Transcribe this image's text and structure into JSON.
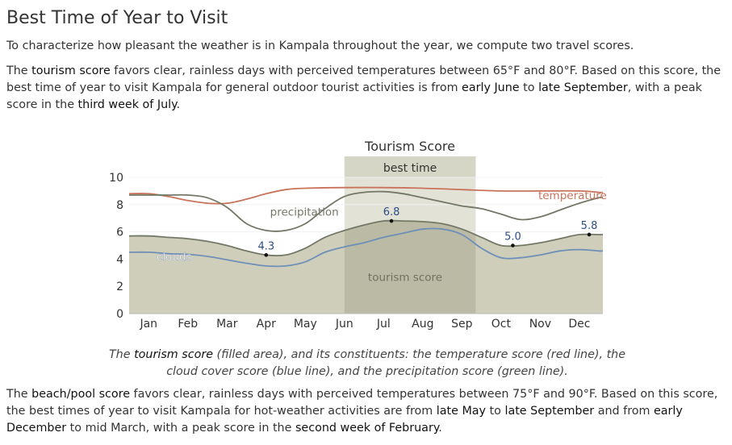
{
  "page": {
    "title": "Best Time of Year to Visit",
    "intro": "To characterize how pleasant the weather is in Kampala throughout the year, we compute two travel scores.",
    "tourism_para": {
      "p1": "The ",
      "k1": "tourism score",
      "p2": " favors clear, rainless days with perceived temperatures between 65°F and 80°F. Based on this score, the best time of year to visit Kampala for general outdoor tourist activities is from ",
      "k2": "early June",
      "p3": " to ",
      "k3": "late September",
      "p4": ", with a peak score in the ",
      "k4": "third week of July",
      "p5": "."
    },
    "caption": {
      "p1": "The ",
      "k1": "tourism score",
      "p2": " (filled area), and its constituents: the temperature score (red line), the cloud cover score (blue line), and the precipitation score (green line)."
    },
    "beach_para": {
      "p1": "The ",
      "k1": "beach/pool score",
      "p2": " favors clear, rainless days with perceived temperatures between 75°F and 90°F. Based on this score, the best times of year to visit Kampala for hot-weather activities are from ",
      "k2": "late May",
      "p3": " to ",
      "k3": "late September",
      "p4": " and from ",
      "k4": "early December",
      "p5": " to mid March, with a peak score in the ",
      "k5": "second week of February",
      "p6": "."
    }
  },
  "chart_data": {
    "type": "area",
    "title": "Tourism Score",
    "best_time_label": "best time",
    "best_time_range": [
      5.0,
      8.35
    ],
    "x_categories": [
      "Jan",
      "Feb",
      "Mar",
      "Apr",
      "May",
      "Jun",
      "Jul",
      "Aug",
      "Sep",
      "Oct",
      "Nov",
      "Dec"
    ],
    "ylim": [
      0,
      10
    ],
    "yticks": [
      "0",
      "2",
      "4",
      "6",
      "8",
      "10"
    ],
    "series": [
      {
        "name": "tourism score",
        "color": "#c9c9b4",
        "values": [
          [
            0,
            5.7
          ],
          [
            0.5,
            5.6
          ],
          [
            1,
            5.5
          ],
          [
            1.5,
            5.3
          ],
          [
            2,
            5.0
          ],
          [
            2.5,
            4.6
          ],
          [
            3,
            4.3
          ],
          [
            3.5,
            4.3
          ],
          [
            4,
            4.8
          ],
          [
            4.5,
            5.6
          ],
          [
            5,
            6.1
          ],
          [
            5.5,
            6.5
          ],
          [
            6,
            6.8
          ],
          [
            6.5,
            6.8
          ],
          [
            7,
            6.75
          ],
          [
            7.5,
            6.6
          ],
          [
            8,
            6.2
          ],
          [
            8.5,
            5.6
          ],
          [
            9,
            5.0
          ],
          [
            9.5,
            5.0
          ],
          [
            10,
            5.2
          ],
          [
            10.5,
            5.5
          ],
          [
            11,
            5.8
          ],
          [
            11.5,
            5.8
          ]
        ]
      },
      {
        "name": "temperature",
        "color": "#c8735a",
        "values": [
          [
            0,
            8.8
          ],
          [
            0.5,
            8.6
          ],
          [
            1,
            8.3
          ],
          [
            1.5,
            8.1
          ],
          [
            2,
            8.1
          ],
          [
            2.5,
            8.4
          ],
          [
            3,
            8.8
          ],
          [
            3.5,
            9.1
          ],
          [
            4,
            9.2
          ],
          [
            5,
            9.25
          ],
          [
            6,
            9.25
          ],
          [
            7,
            9.2
          ],
          [
            8,
            9.1
          ],
          [
            9,
            9.0
          ],
          [
            10,
            9.0
          ],
          [
            11,
            9.0
          ],
          [
            11.5,
            8.9
          ]
        ]
      },
      {
        "name": "precipitation",
        "color": "#737866",
        "values": [
          [
            0,
            8.7
          ],
          [
            0.5,
            8.7
          ],
          [
            1,
            8.7
          ],
          [
            1.5,
            8.5
          ],
          [
            2,
            7.8
          ],
          [
            2.5,
            6.6
          ],
          [
            3,
            6.1
          ],
          [
            3.5,
            6.1
          ],
          [
            4,
            6.6
          ],
          [
            4.5,
            7.7
          ],
          [
            5,
            8.6
          ],
          [
            5.5,
            8.9
          ],
          [
            6,
            8.95
          ],
          [
            6.5,
            8.8
          ],
          [
            7,
            8.5
          ],
          [
            7.5,
            8.2
          ],
          [
            8,
            7.9
          ],
          [
            8.5,
            7.7
          ],
          [
            9,
            7.3
          ],
          [
            9.5,
            6.9
          ],
          [
            10,
            7.1
          ],
          [
            10.5,
            7.6
          ],
          [
            11,
            8.1
          ],
          [
            11.5,
            8.5
          ]
        ]
      },
      {
        "name": "clouds",
        "color": "#6e8fb8",
        "values": [
          [
            0,
            4.5
          ],
          [
            0.5,
            4.4
          ],
          [
            1,
            4.35
          ],
          [
            1.5,
            4.2
          ],
          [
            2,
            3.95
          ],
          [
            2.5,
            3.7
          ],
          [
            3,
            3.5
          ],
          [
            3.5,
            3.5
          ],
          [
            4,
            3.8
          ],
          [
            4.5,
            4.5
          ],
          [
            5,
            4.9
          ],
          [
            5.5,
            5.2
          ],
          [
            6,
            5.6
          ],
          [
            6.5,
            5.9
          ],
          [
            7,
            6.2
          ],
          [
            7.5,
            6.2
          ],
          [
            8,
            5.8
          ],
          [
            8.5,
            4.8
          ],
          [
            9,
            4.1
          ],
          [
            9.5,
            4.1
          ],
          [
            10,
            4.3
          ],
          [
            10.5,
            4.6
          ],
          [
            11,
            4.7
          ],
          [
            11.5,
            4.6
          ]
        ]
      }
    ],
    "annotations": [
      {
        "text": "4.3",
        "x": 3.0,
        "y": 4.3
      },
      {
        "text": "6.8",
        "x": 6.2,
        "y": 6.8
      },
      {
        "text": "5.0",
        "x": 9.3,
        "y": 5.0
      },
      {
        "text": "5.8",
        "x": 11.25,
        "y": 5.8
      }
    ],
    "series_labels": [
      {
        "text": "temperature",
        "x": 9.95,
        "y": 8.4,
        "color": "#c8735a"
      },
      {
        "text": "precipitation",
        "x": 3.1,
        "y": 7.2,
        "color": "#737866"
      },
      {
        "text": "clouds",
        "x": 0.2,
        "y": 3.9,
        "color": "#ffffff"
      },
      {
        "text": "tourism score",
        "x": 5.6,
        "y": 2.4,
        "color": "#707060"
      }
    ]
  }
}
